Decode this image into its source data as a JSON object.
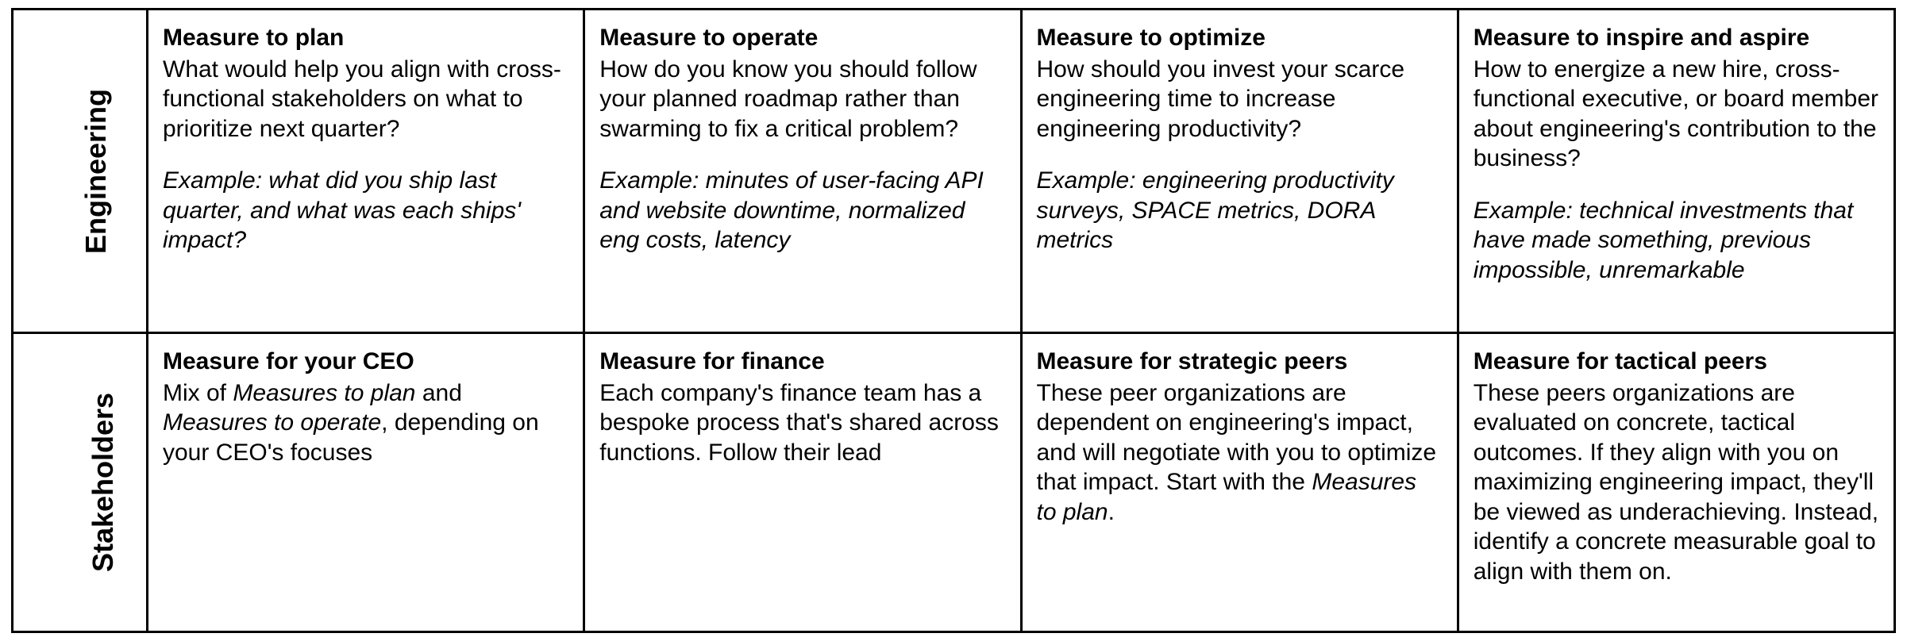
{
  "table": {
    "type": "table",
    "border_color": "#000000",
    "background_color": "#ffffff",
    "text_color": "#000000",
    "font_family": "Helvetica Neue",
    "title_fontsize": 30,
    "body_fontsize": 30,
    "rowlabel_fontsize": 36,
    "rows": [
      {
        "label": "Engineering",
        "cells": [
          {
            "title": "Measure to plan",
            "body": "What would help you align with cross-functional stakeholders on what to prioritize next quarter?",
            "example": "Example: what did you ship last quarter, and what was each ships' impact?"
          },
          {
            "title": "Measure to operate",
            "body": "How do you know you should follow your planned roadmap rather than swarming to fix a critical problem?",
            "example": "Example: minutes of user-facing API and website downtime, normalized eng costs, latency"
          },
          {
            "title": "Measure to optimize",
            "body": "How should you invest your scarce engineering time to increase engineering productivity?",
            "example": "Example: engineering productivity surveys, SPACE metrics, DORA metrics"
          },
          {
            "title": "Measure to inspire and aspire",
            "body": "How to energize a new hire, cross-functional executive, or board member about engineering's contribution to the business?",
            "example": "Example: technical investments that have made something, previous impossible, unremarkable"
          }
        ]
      },
      {
        "label": "Stakeholders",
        "cells": [
          {
            "title": "Measure for your CEO",
            "body_segments": [
              {
                "text": "Mix of ",
                "italic": false
              },
              {
                "text": "Measures to plan",
                "italic": true
              },
              {
                "text": " and ",
                "italic": false
              },
              {
                "text": "Measures to operate",
                "italic": true
              },
              {
                "text": ", depending on your CEO's focuses",
                "italic": false
              }
            ]
          },
          {
            "title": "Measure for finance",
            "body": "Each company's finance team has a bespoke process that's shared across functions. Follow their lead"
          },
          {
            "title": "Measure for strategic peers",
            "body_segments": [
              {
                "text": "These peer organizations are dependent on engineering's impact, and will negotiate with you to optimize that impact. Start with the ",
                "italic": false
              },
              {
                "text": "Measures to plan",
                "italic": true
              },
              {
                "text": ".",
                "italic": false
              }
            ]
          },
          {
            "title": "Measure for tactical peers",
            "body": "These peers organizations are evaluated on concrete, tactical outcomes. If they align with you on maximizing engineering impact, they'll be viewed as underachieving. Instead, identify a concrete measurable goal to align with them on."
          }
        ]
      }
    ]
  }
}
